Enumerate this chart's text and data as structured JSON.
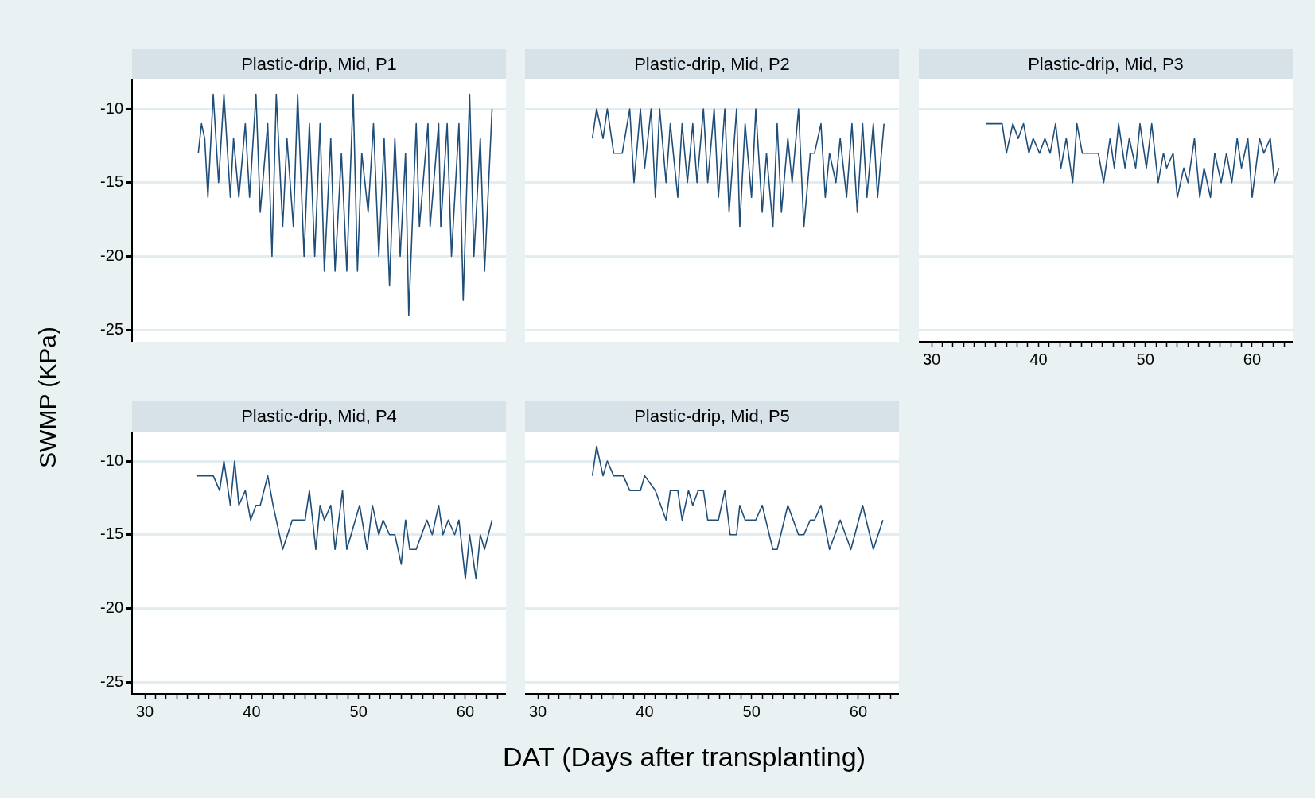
{
  "chart_data": [
    {
      "type": "line",
      "title": "Plastic-drip, Mid, P1",
      "ylabel": "SWMP (KPa)",
      "color": "#1f4e79",
      "grid": "y",
      "tick_labels": "y",
      "xlim": [
        28.8,
        63.8
      ],
      "ylim": [
        -25.8,
        -8
      ],
      "yticks": [
        -25,
        -20,
        -15,
        -10
      ],
      "x": [
        35.0,
        35.3,
        35.6,
        35.9,
        36.4,
        36.9,
        37.4,
        38.0,
        38.3,
        38.8,
        39.4,
        39.8,
        40.4,
        40.8,
        41.5,
        41.9,
        42.3,
        42.9,
        43.3,
        43.9,
        44.3,
        44.9,
        45.4,
        45.9,
        46.4,
        46.8,
        47.4,
        47.8,
        48.4,
        48.9,
        49.5,
        49.9,
        50.3,
        50.9,
        51.4,
        51.9,
        52.4,
        52.9,
        53.4,
        53.9,
        54.4,
        54.7,
        55.4,
        55.7,
        56.5,
        56.7,
        57.5,
        57.7,
        58.3,
        58.7,
        59.4,
        59.8,
        60.4,
        60.8,
        61.4,
        61.8,
        62.5
      ],
      "values": [
        -13,
        -11,
        -12,
        -16,
        -9,
        -15,
        -9,
        -16,
        -12,
        -16,
        -11,
        -16,
        -9,
        -17,
        -11,
        -20,
        -9,
        -18,
        -12,
        -18,
        -9,
        -20,
        -11,
        -20,
        -11,
        -21,
        -12,
        -21,
        -13,
        -21,
        -9,
        -21,
        -13,
        -17,
        -11,
        -20,
        -12,
        -22,
        -12,
        -20,
        -13,
        -24,
        -11,
        -18,
        -11,
        -18,
        -11,
        -18,
        -11,
        -20,
        -11,
        -23,
        -9,
        -20,
        -12,
        -21,
        -10
      ]
    },
    {
      "type": "line",
      "title": "Plastic-drip, Mid, P2",
      "color": "#1f4e79",
      "grid": "y",
      "tick_labels": false,
      "xlim": [
        28.8,
        63.8
      ],
      "ylim": [
        -25.8,
        -8
      ],
      "yticks": [
        -25,
        -20,
        -15,
        -10
      ],
      "x": [
        35.1,
        35.5,
        36.1,
        36.5,
        37.1,
        37.9,
        38.6,
        39.0,
        39.6,
        40.0,
        40.6,
        41.0,
        41.4,
        42.0,
        42.4,
        43.1,
        43.5,
        44.0,
        44.5,
        44.9,
        45.5,
        45.9,
        46.5,
        46.9,
        47.5,
        47.9,
        48.6,
        48.9,
        49.4,
        50.0,
        50.4,
        51.0,
        51.4,
        52.0,
        52.4,
        52.8,
        53.4,
        53.8,
        54.4,
        54.9,
        55.5,
        55.9,
        56.5,
        56.9,
        57.3,
        57.9,
        58.3,
        58.9,
        59.4,
        59.9,
        60.4,
        60.8,
        61.4,
        61.8,
        62.4
      ],
      "values": [
        -12,
        -10,
        -12,
        -10,
        -13,
        -13,
        -10,
        -15,
        -10,
        -14,
        -10,
        -16,
        -10,
        -15,
        -11,
        -16,
        -11,
        -15,
        -11,
        -15,
        -10,
        -15,
        -10,
        -16,
        -10,
        -17,
        -10,
        -18,
        -11,
        -16,
        -10,
        -17,
        -13,
        -18,
        -11,
        -17,
        -12,
        -15,
        -10,
        -18,
        -13,
        -13,
        -11,
        -16,
        -13,
        -15,
        -12,
        -16,
        -11,
        -17,
        -11,
        -16,
        -11,
        -16,
        -11
      ]
    },
    {
      "type": "line",
      "title": "Plastic-drip, Mid, P3",
      "color": "#1f4e79",
      "grid": "y",
      "tick_labels": "x",
      "xlim": [
        28.8,
        63.8
      ],
      "ylim": [
        -25.8,
        -8
      ],
      "yticks": [
        -25,
        -20,
        -15,
        -10
      ],
      "xticks": [
        30,
        {
          "value": 31,
          "label": null
        },
        {
          "value": 32,
          "label": null
        },
        {
          "value": 33,
          "label": null
        },
        {
          "value": 34,
          "label": null
        },
        {
          "value": 35,
          "label": null
        },
        {
          "value": 36,
          "label": null
        },
        {
          "value": 37,
          "label": null
        },
        {
          "value": 38,
          "label": null
        },
        {
          "value": 39,
          "label": null
        },
        40,
        {
          "value": 41,
          "label": null
        },
        {
          "value": 42,
          "label": null
        },
        {
          "value": 43,
          "label": null
        },
        {
          "value": 44,
          "label": null
        },
        {
          "value": 45,
          "label": null
        },
        {
          "value": 46,
          "label": null
        },
        {
          "value": 47,
          "label": null
        },
        {
          "value": 48,
          "label": null
        },
        {
          "value": 49,
          "label": null
        },
        50,
        {
          "value": 51,
          "label": null
        },
        {
          "value": 52,
          "label": null
        },
        {
          "value": 53,
          "label": null
        },
        {
          "value": 54,
          "label": null
        },
        {
          "value": 55,
          "label": null
        },
        {
          "value": 56,
          "label": null
        },
        {
          "value": 57,
          "label": null
        },
        {
          "value": 58,
          "label": null
        },
        {
          "value": 59,
          "label": null
        },
        60,
        {
          "value": 61,
          "label": null
        },
        {
          "value": 62,
          "label": null
        },
        {
          "value": 63,
          "label": null
        }
      ],
      "x": [
        35.1,
        36.6,
        37.0,
        37.6,
        38.1,
        38.6,
        39.1,
        39.5,
        40.1,
        40.6,
        41.1,
        41.6,
        42.1,
        42.6,
        43.2,
        43.6,
        44.1,
        45.6,
        46.1,
        46.7,
        47.1,
        47.5,
        48.1,
        48.5,
        49.1,
        49.5,
        50.1,
        50.6,
        51.2,
        51.7,
        52.0,
        52.6,
        53.0,
        53.6,
        54.0,
        54.6,
        55.1,
        55.5,
        56.1,
        56.5,
        57.1,
        57.6,
        58.1,
        58.6,
        59.0,
        59.6,
        60.0,
        60.7,
        61.1,
        61.7,
        62.1,
        62.5
      ],
      "values": [
        -11,
        -11,
        -13,
        -11,
        -12,
        -11,
        -13,
        -12,
        -13,
        -12,
        -13,
        -11,
        -14,
        -12,
        -15,
        -11,
        -13,
        -13,
        -15,
        -12,
        -14,
        -11,
        -14,
        -12,
        -14,
        -11,
        -14,
        -11,
        -15,
        -13,
        -14,
        -13,
        -16,
        -14,
        -15,
        -12,
        -16,
        -14,
        -16,
        -13,
        -15,
        -13,
        -15,
        -12,
        -14,
        -12,
        -16,
        -12,
        -13,
        -12,
        -15,
        -14
      ]
    },
    {
      "type": "line",
      "title": "Plastic-drip, Mid, P4",
      "color": "#1f4e79",
      "grid": "y",
      "xlim": [
        28.8,
        63.8
      ],
      "ylim": [
        -25.8,
        -8
      ],
      "yticks": [
        -25,
        -20,
        -15,
        -10
      ],
      "xticks": [
        30,
        {
          "value": 31,
          "label": null
        },
        {
          "value": 32,
          "label": null
        },
        {
          "value": 33,
          "label": null
        },
        {
          "value": 34,
          "label": null
        },
        {
          "value": 35,
          "label": null
        },
        {
          "value": 36,
          "label": null
        },
        {
          "value": 37,
          "label": null
        },
        {
          "value": 38,
          "label": null
        },
        {
          "value": 39,
          "label": null
        },
        40,
        {
          "value": 41,
          "label": null
        },
        {
          "value": 42,
          "label": null
        },
        {
          "value": 43,
          "label": null
        },
        {
          "value": 44,
          "label": null
        },
        {
          "value": 45,
          "label": null
        },
        {
          "value": 46,
          "label": null
        },
        {
          "value": 47,
          "label": null
        },
        {
          "value": 48,
          "label": null
        },
        {
          "value": 49,
          "label": null
        },
        50,
        {
          "value": 51,
          "label": null
        },
        {
          "value": 52,
          "label": null
        },
        {
          "value": 53,
          "label": null
        },
        {
          "value": 54,
          "label": null
        },
        {
          "value": 55,
          "label": null
        },
        {
          "value": 56,
          "label": null
        },
        {
          "value": 57,
          "label": null
        },
        {
          "value": 58,
          "label": null
        },
        {
          "value": 59,
          "label": null
        },
        60,
        {
          "value": 61,
          "label": null
        },
        {
          "value": 62,
          "label": null
        },
        {
          "value": 63,
          "label": null
        }
      ],
      "x": [
        34.9,
        36.4,
        37.0,
        37.4,
        38.0,
        38.4,
        38.8,
        39.4,
        39.9,
        40.4,
        40.8,
        41.5,
        42.0,
        42.9,
        43.8,
        45.0,
        45.4,
        46.0,
        46.4,
        46.8,
        47.4,
        47.8,
        48.5,
        48.9,
        50.1,
        50.8,
        51.3,
        51.9,
        52.3,
        52.9,
        53.4,
        54.0,
        54.4,
        54.8,
        55.4,
        56.4,
        56.9,
        57.5,
        57.9,
        58.4,
        59.0,
        59.4,
        60.0,
        60.4,
        61.0,
        61.4,
        61.8,
        62.5
      ],
      "values": [
        -11,
        -11,
        -12,
        -10,
        -13,
        -10,
        -13,
        -12,
        -14,
        -13,
        -13,
        -11,
        -13,
        -16,
        -14,
        -14,
        -12,
        -16,
        -13,
        -14,
        -13,
        -16,
        -12,
        -16,
        -13,
        -16,
        -13,
        -15,
        -14,
        -15,
        -15,
        -17,
        -14,
        -16,
        -16,
        -14,
        -15,
        -13,
        -15,
        -14,
        -15,
        -14,
        -18,
        -15,
        -18,
        -15,
        -16,
        -14
      ]
    },
    {
      "type": "line",
      "title": "Plastic-drip, Mid, P5",
      "xlabel": "DAT (Days after transplanting)",
      "color": "#1f4e79",
      "grid": "y",
      "tick_labels": "x",
      "xlim": [
        28.8,
        63.8
      ],
      "ylim": [
        -25.8,
        -8
      ],
      "yticks": [
        -25,
        -20,
        -15,
        -10
      ],
      "xticks": [
        30,
        {
          "value": 31,
          "label": null
        },
        {
          "value": 32,
          "label": null
        },
        {
          "value": 33,
          "label": null
        },
        {
          "value": 34,
          "label": null
        },
        {
          "value": 35,
          "label": null
        },
        {
          "value": 36,
          "label": null
        },
        {
          "value": 37,
          "label": null
        },
        {
          "value": 38,
          "label": null
        },
        {
          "value": 39,
          "label": null
        },
        40,
        {
          "value": 41,
          "label": null
        },
        {
          "value": 42,
          "label": null
        },
        {
          "value": 43,
          "label": null
        },
        {
          "value": 44,
          "label": null
        },
        {
          "value": 45,
          "label": null
        },
        {
          "value": 46,
          "label": null
        },
        {
          "value": 47,
          "label": null
        },
        {
          "value": 48,
          "label": null
        },
        {
          "value": 49,
          "label": null
        },
        50,
        {
          "value": 51,
          "label": null
        },
        {
          "value": 52,
          "label": null
        },
        {
          "value": 53,
          "label": null
        },
        {
          "value": 54,
          "label": null
        },
        {
          "value": 55,
          "label": null
        },
        {
          "value": 56,
          "label": null
        },
        {
          "value": 57,
          "label": null
        },
        {
          "value": 58,
          "label": null
        },
        {
          "value": 59,
          "label": null
        },
        60,
        {
          "value": 61,
          "label": null
        },
        {
          "value": 62,
          "label": null
        },
        {
          "value": 63,
          "label": null
        }
      ],
      "x": [
        35.1,
        35.5,
        36.1,
        36.5,
        37.1,
        38.0,
        38.6,
        39.6,
        40.0,
        41.0,
        42.0,
        42.4,
        43.1,
        43.5,
        44.1,
        44.5,
        45.0,
        45.5,
        45.9,
        46.9,
        47.5,
        48.0,
        48.6,
        48.9,
        49.4,
        50.4,
        51.0,
        52.0,
        52.4,
        53.4,
        54.4,
        54.9,
        55.5,
        55.9,
        56.5,
        57.3,
        58.3,
        59.3,
        60.4,
        61.4,
        62.3
      ],
      "values": [
        -11,
        -9,
        -11,
        -10,
        -11,
        -11,
        -12,
        -12,
        -11,
        -12,
        -14,
        -12,
        -12,
        -14,
        -12,
        -13,
        -12,
        -12,
        -14,
        -14,
        -12,
        -15,
        -15,
        -13,
        -14,
        -14,
        -13,
        -16,
        -16,
        -13,
        -15,
        -15,
        -14,
        -14,
        -13,
        -16,
        -14,
        -16,
        -13,
        -16,
        -14
      ]
    }
  ]
}
